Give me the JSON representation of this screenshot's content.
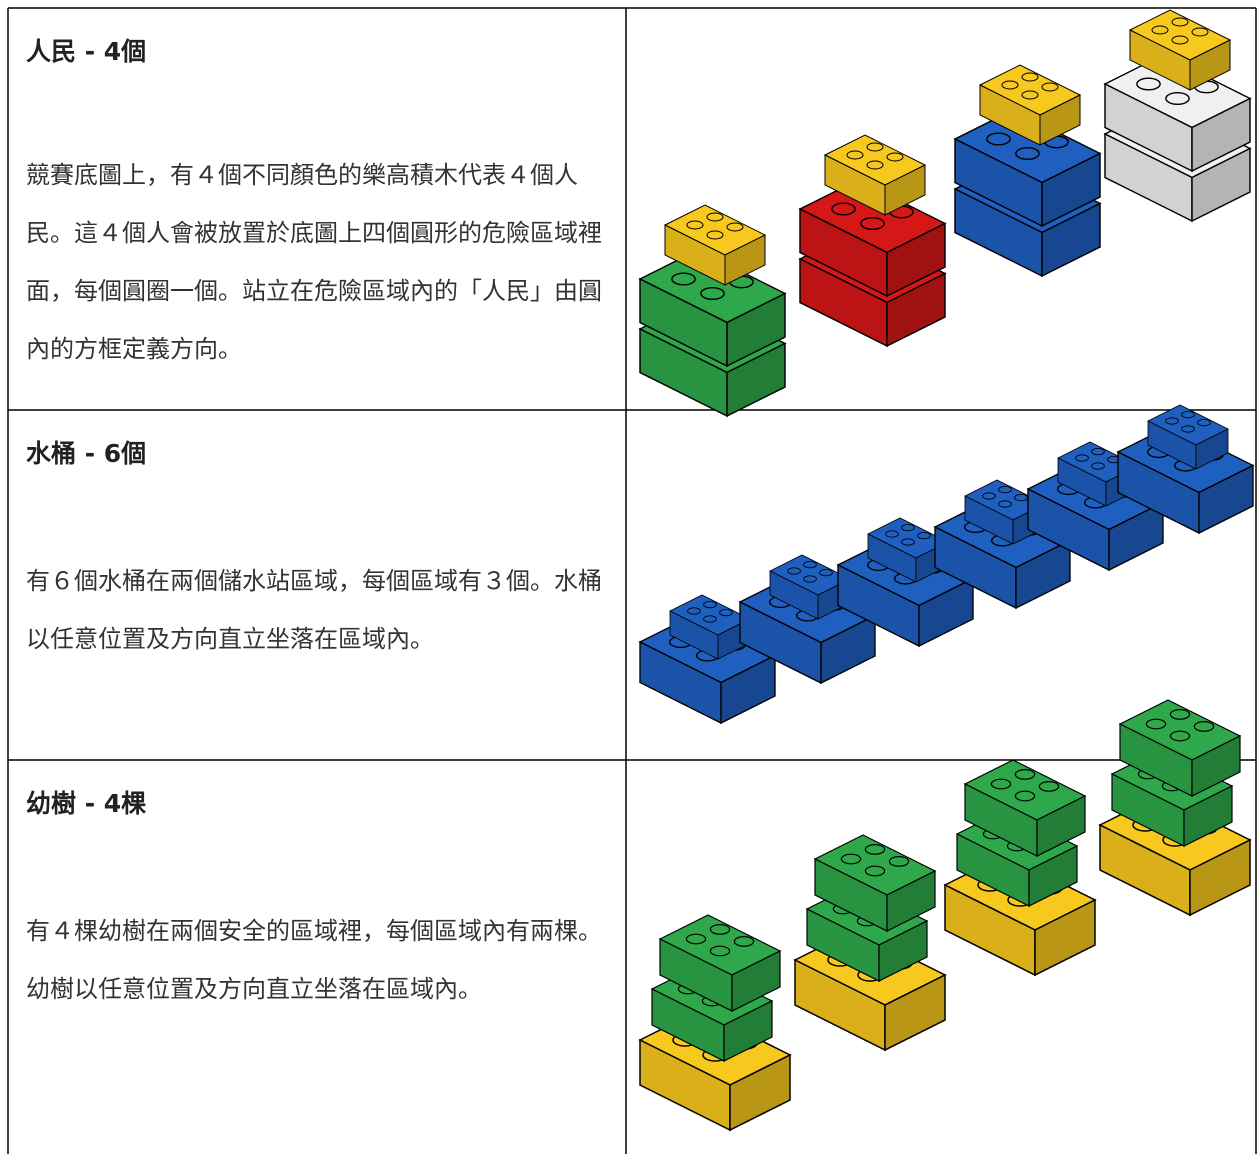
{
  "table": {
    "rows": [
      {
        "title": "人民 - 4個",
        "text": "競賽底圖上，有４個不同顏色的樂高積木代表４個人民。這４個人會被放置於底圖上四個圓形的危險區域裡面，每個圓圈一個。站立在危險區域內的「人民」由圓內的方框定義方向。"
      },
      {
        "title": "水桶 - 6個",
        "text": "有６個水桶在兩個儲水站區域，每個區域有３個。水桶以任意位置及方向直立坐落在區域內。"
      },
      {
        "title": "幼樹 - 4棵",
        "text": "有４棵幼樹在兩個安全的區域裡，每個區域內有兩棵。幼樹以任意位置及方向直立坐落在區域內。"
      }
    ]
  }
}
